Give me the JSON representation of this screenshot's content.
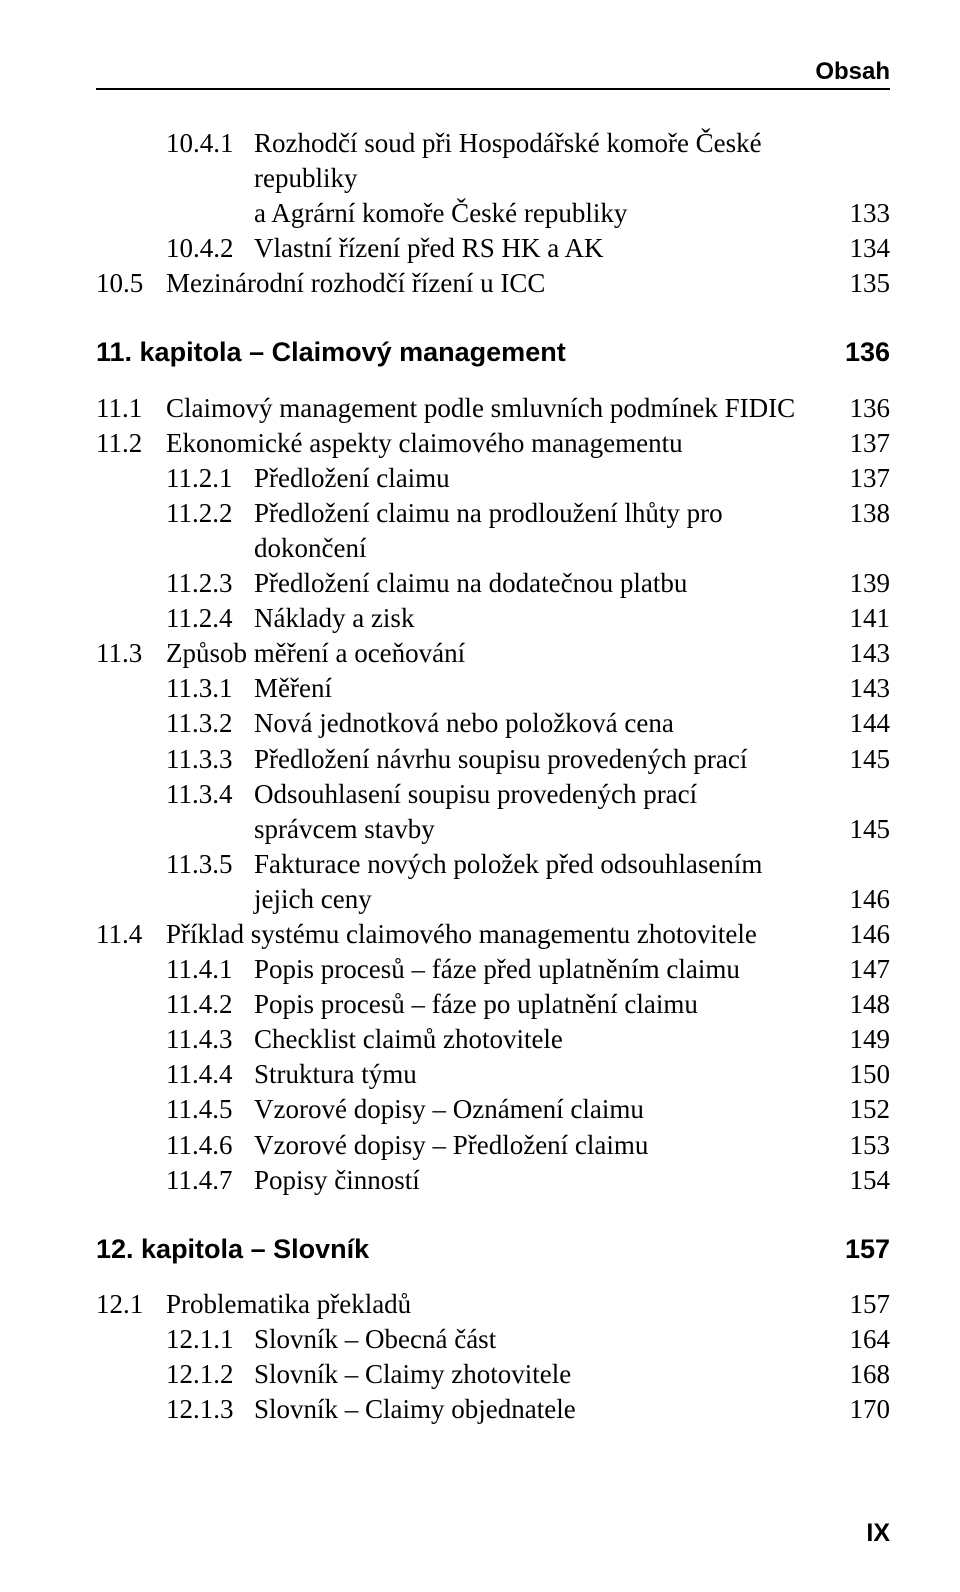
{
  "page": {
    "running_head": "Obsah",
    "folio": "IX",
    "background_color": "#ffffff",
    "text_color": "#000000",
    "rule_color": "#000000",
    "body_font": "Times New Roman",
    "heading_font": "Arial",
    "body_fontsize_pt": 20,
    "heading_fontsize_pt": 20,
    "running_head_fontsize_pt": 18
  },
  "e": {
    "a": {
      "num": "10.4.1",
      "title": "Rozhodčí soud při Hospodářské komoře České republiky"
    },
    "a2": {
      "cont": "a Agrární komoře České republiky",
      "pg": "133"
    },
    "b": {
      "num": "10.4.2",
      "title": "Vlastní řízení před RS HK a AK",
      "pg": "134"
    },
    "c": {
      "num": "10.5",
      "title": "Mezinárodní rozhodčí řízení u ICC",
      "pg": "135"
    },
    "ch11": {
      "title": "11. kapitola – Claimový management",
      "pg": "136"
    },
    "d": {
      "num": "11.1",
      "title": "Claimový management podle smluvních podmínek FIDIC",
      "pg": "136"
    },
    "e1": {
      "num": "11.2",
      "title": "Ekonomické aspekty claimového managementu",
      "pg": "137"
    },
    "f": {
      "num": "11.2.1",
      "title": "Předložení claimu",
      "pg": "137"
    },
    "g": {
      "num": "11.2.2",
      "title": "Předložení claimu na prodloužení lhůty pro dokončení",
      "pg": "138"
    },
    "h": {
      "num": "11.2.3",
      "title": "Předložení claimu na dodatečnou platbu",
      "pg": "139"
    },
    "i": {
      "num": "11.2.4",
      "title": "Náklady a zisk",
      "pg": "141"
    },
    "j": {
      "num": "11.3",
      "title": "Způsob měření a oceňování",
      "pg": "143"
    },
    "k": {
      "num": "11.3.1",
      "title": "Měření",
      "pg": "143"
    },
    "l": {
      "num": "11.3.2",
      "title": "Nová jednotková nebo položková cena",
      "pg": "144"
    },
    "m": {
      "num": "11.3.3",
      "title": "Předložení návrhu soupisu provedených prací",
      "pg": "145"
    },
    "n": {
      "num": "11.3.4",
      "title": "Odsouhlasení soupisu provedených prací"
    },
    "n2": {
      "cont": "správcem stavby",
      "pg": "145"
    },
    "o": {
      "num": "11.3.5",
      "title": "Fakturace nových položek před odsouhlasením"
    },
    "o2": {
      "cont": "jejich ceny",
      "pg": "146"
    },
    "p": {
      "num": "11.4",
      "title": "Příklad systému claimového managementu zhotovitele",
      "pg": "146"
    },
    "q": {
      "num": "11.4.1",
      "title": "Popis procesů – fáze před uplatněním claimu",
      "pg": "147"
    },
    "r": {
      "num": "11.4.2",
      "title": "Popis procesů – fáze po uplatnění claimu",
      "pg": "148"
    },
    "s": {
      "num": "11.4.3",
      "title": "Checklist claimů zhotovitele",
      "pg": "149"
    },
    "t": {
      "num": "11.4.4",
      "title": "Struktura týmu",
      "pg": "150"
    },
    "u": {
      "num": "11.4.5",
      "title": "Vzorové dopisy – Oznámení claimu",
      "pg": "152"
    },
    "v": {
      "num": "11.4.6",
      "title": "Vzorové dopisy – Předložení claimu",
      "pg": "153"
    },
    "w": {
      "num": "11.4.7",
      "title": "Popisy činností",
      "pg": "154"
    },
    "ch12": {
      "title": "12. kapitola – Slovník",
      "pg": "157"
    },
    "x": {
      "num": "12.1",
      "title": "Problematika překladů",
      "pg": "157"
    },
    "y": {
      "num": "12.1.1",
      "title": "Slovník – Obecná část",
      "pg": "164"
    },
    "z": {
      "num": "12.1.2",
      "title": "Slovník – Claimy zhotovitele",
      "pg": "168"
    },
    "aa": {
      "num": "12.1.3",
      "title": "Slovník – Claimy objednatele",
      "pg": "170"
    }
  }
}
